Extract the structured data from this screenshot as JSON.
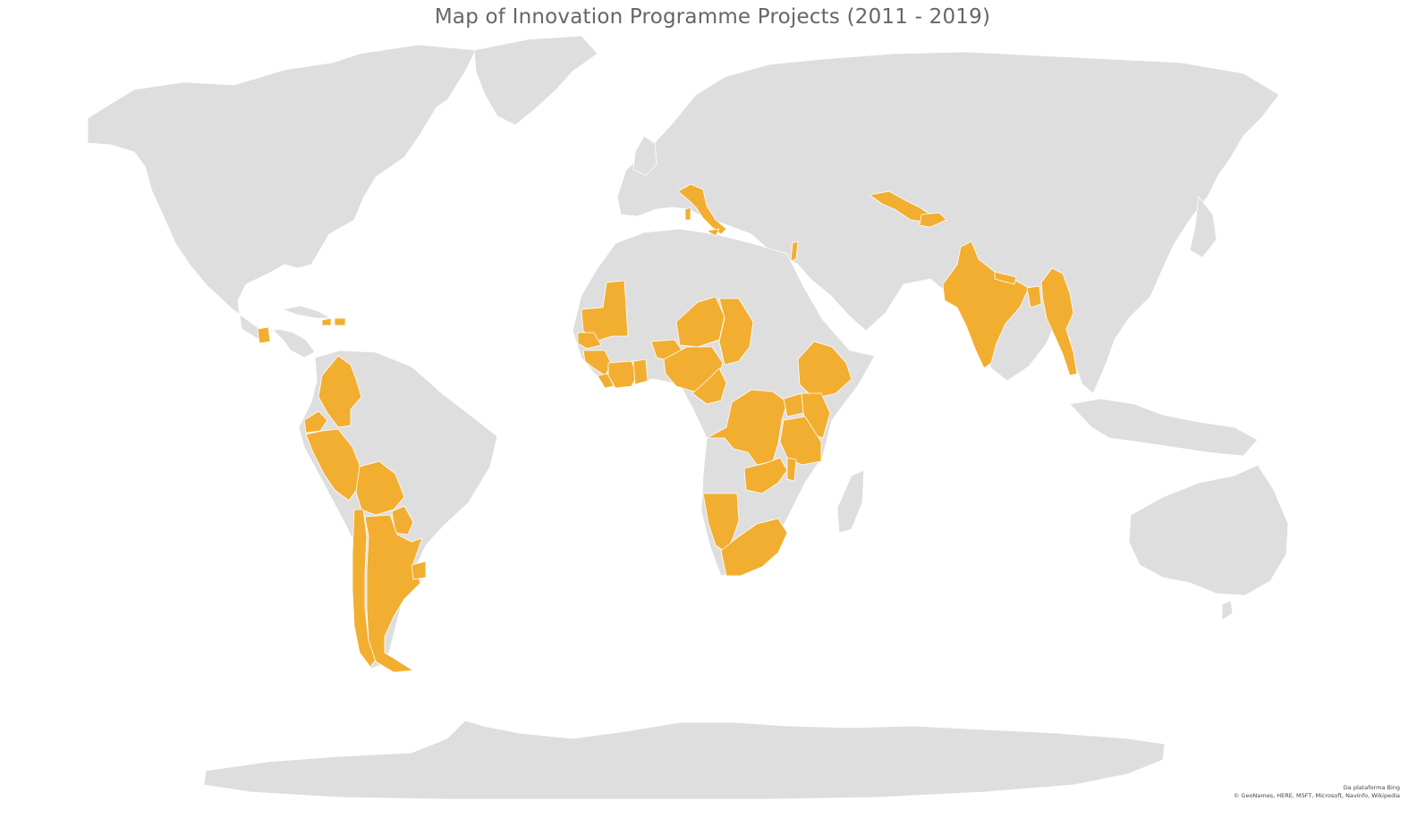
{
  "title": "Map of Innovation Programme Projects (2011 - 2019)",
  "attribution": {
    "line1": "Da plataforma Bing",
    "line2": "© GeoNames, HERE, MSFT, Microsoft, NavInfo, Wikipedia"
  },
  "colors": {
    "background": "#ffffff",
    "land": "#dedede",
    "highlight": "#f2ae30",
    "border": "#ffffff"
  },
  "highlighted_countries": [
    "Italy",
    "Uzbekistan",
    "Tajikistan",
    "Israel",
    "Guatemala",
    "Haiti",
    "Dominican Republic",
    "Colombia",
    "Ecuador",
    "Peru",
    "Bolivia",
    "Paraguay",
    "Chile",
    "Argentina",
    "Uruguay",
    "Mauritania",
    "Senegal",
    "Gambia",
    "Guinea-Bissau",
    "Guinea",
    "Sierra Leone",
    "Liberia",
    "Côte d'Ivoire",
    "Ghana",
    "Burkina Faso",
    "Niger",
    "Nigeria",
    "Chad",
    "Cameroon",
    "Ethiopia",
    "Kenya",
    "Uganda",
    "Rwanda",
    "Burundi",
    "Tanzania",
    "Democratic Republic of the Congo",
    "Zambia",
    "Malawi",
    "Namibia",
    "South Africa",
    "India",
    "Nepal",
    "Bangladesh",
    "Myanmar"
  ]
}
